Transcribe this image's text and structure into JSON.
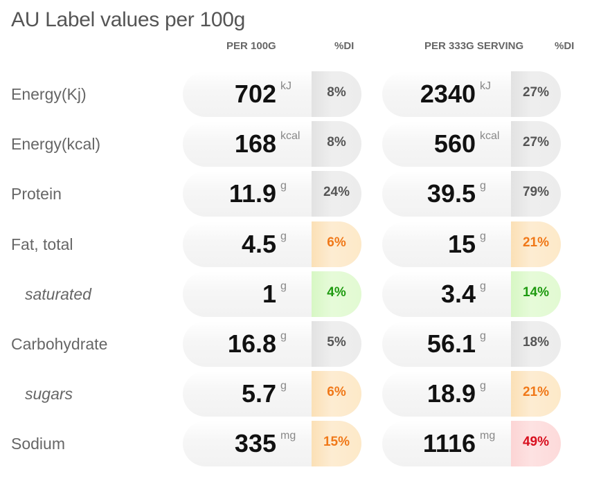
{
  "title": "AU Label values per 100g",
  "headers": {
    "per100": "PER 100G",
    "di1": "%DI",
    "serving": "PER 333G SERVING",
    "di2": "%DI"
  },
  "status_colors": {
    "gray": "#555555",
    "orange": "#f07818",
    "green": "#1e9a10",
    "red": "#d80f1e"
  },
  "rows": [
    {
      "label": "Energy(Kj)",
      "sub": false,
      "per100": {
        "value": "702",
        "unit": "kJ",
        "di": "8%",
        "level": "gray"
      },
      "serving": {
        "value": "2340",
        "unit": "kJ",
        "di": "27%",
        "level": "gray"
      }
    },
    {
      "label": "Energy(kcal)",
      "sub": false,
      "per100": {
        "value": "168",
        "unit": "kcal",
        "di": "8%",
        "level": "gray"
      },
      "serving": {
        "value": "560",
        "unit": "kcal",
        "di": "27%",
        "level": "gray"
      }
    },
    {
      "label": "Protein",
      "sub": false,
      "per100": {
        "value": "11.9",
        "unit": "g",
        "di": "24%",
        "level": "gray"
      },
      "serving": {
        "value": "39.5",
        "unit": "g",
        "di": "79%",
        "level": "gray"
      }
    },
    {
      "label": "Fat, total",
      "sub": false,
      "per100": {
        "value": "4.5",
        "unit": "g",
        "di": "6%",
        "level": "orange"
      },
      "serving": {
        "value": "15",
        "unit": "g",
        "di": "21%",
        "level": "orange"
      }
    },
    {
      "label": "saturated",
      "sub": true,
      "per100": {
        "value": "1",
        "unit": "g",
        "di": "4%",
        "level": "green"
      },
      "serving": {
        "value": "3.4",
        "unit": "g",
        "di": "14%",
        "level": "green"
      }
    },
    {
      "label": "Carbohydrate",
      "sub": false,
      "per100": {
        "value": "16.8",
        "unit": "g",
        "di": "5%",
        "level": "gray"
      },
      "serving": {
        "value": "56.1",
        "unit": "g",
        "di": "18%",
        "level": "gray"
      }
    },
    {
      "label": "sugars",
      "sub": true,
      "per100": {
        "value": "5.7",
        "unit": "g",
        "di": "6%",
        "level": "orange"
      },
      "serving": {
        "value": "18.9",
        "unit": "g",
        "di": "21%",
        "level": "orange"
      }
    },
    {
      "label": "Sodium",
      "sub": false,
      "per100": {
        "value": "335",
        "unit": "mg",
        "di": "15%",
        "level": "orange"
      },
      "serving": {
        "value": "1116",
        "unit": "mg",
        "di": "49%",
        "level": "red"
      }
    }
  ]
}
